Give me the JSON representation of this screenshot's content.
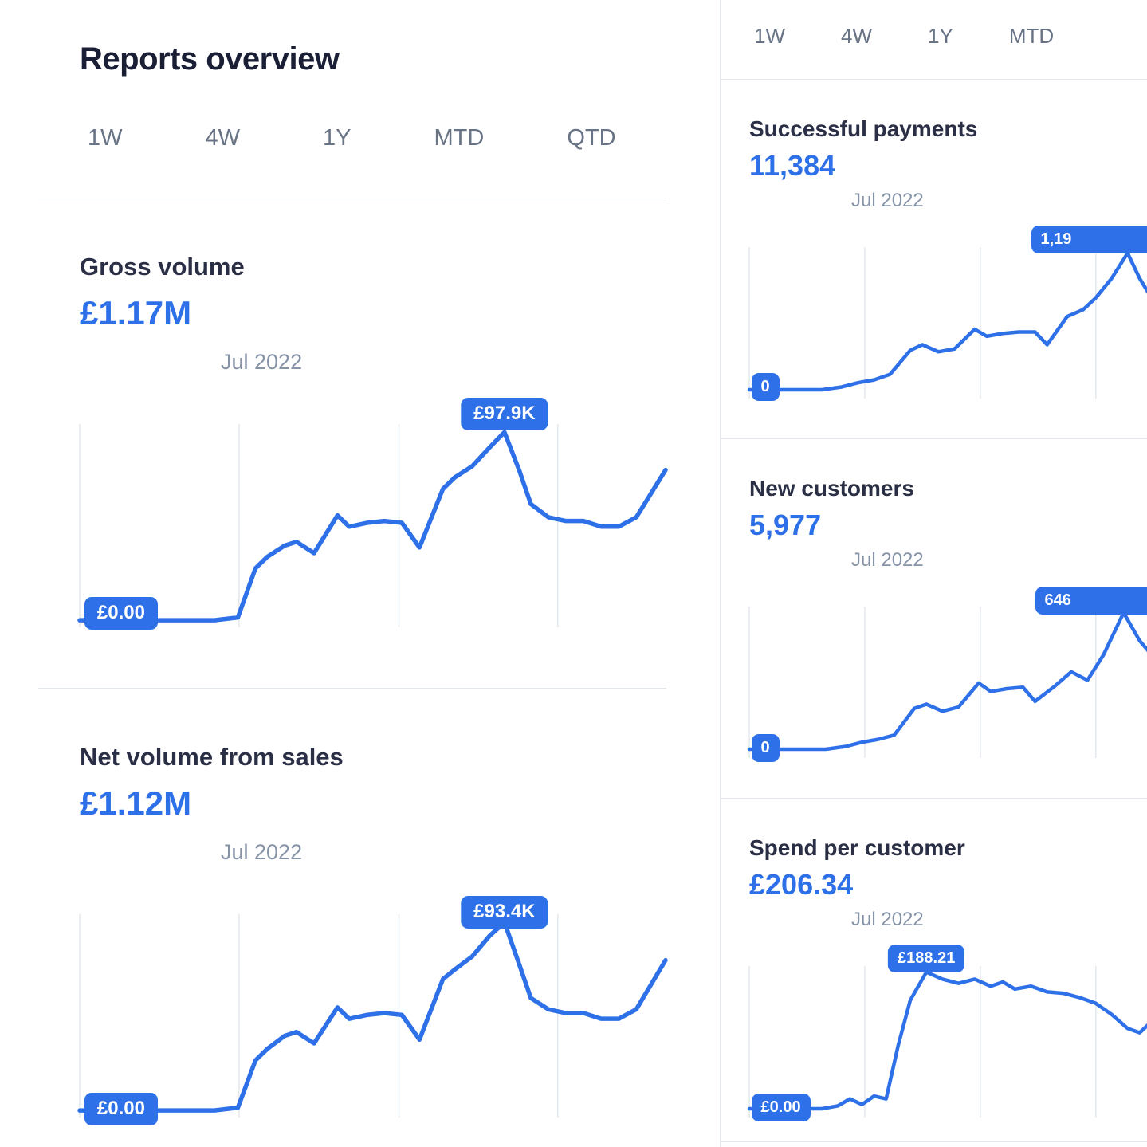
{
  "colors": {
    "accent": "#2e70e8",
    "grid": "#e3e8ee",
    "divider": "#e3e8ee",
    "title": "#1a1f36",
    "card_title": "#2a2f45",
    "muted": "#687385",
    "period": "#8693a7",
    "background": "#ffffff",
    "badge_text": "#ffffff"
  },
  "header": {
    "title": "Reports overview"
  },
  "left": {
    "tabs": [
      "1W",
      "4W",
      "1Y",
      "MTD",
      "QTD"
    ],
    "cards": [
      {
        "title": "Gross volume",
        "value": "£1.17M",
        "period": "Jul 2022"
      },
      {
        "title": "Net volume from sales",
        "value": "£1.12M",
        "period": "Jul 2022"
      }
    ]
  },
  "right": {
    "tabs": [
      "1W",
      "4W",
      "1Y",
      "MTD"
    ],
    "cards": [
      {
        "title": "Successful payments",
        "value": "11,384",
        "period": "Jul 2022"
      },
      {
        "title": "New customers",
        "value": "5,977",
        "period": "Jul 2022"
      },
      {
        "title": "Spend per customer",
        "value": "£206.34",
        "period": "Jul 2022"
      }
    ]
  },
  "chart_data": [
    {
      "type": "line",
      "name": "gross-volume",
      "title": "Gross volume",
      "total": "£1.17M",
      "period": "Jul 2022",
      "y_min_label": "£0.00",
      "y_peak_label": "£97.9K",
      "gridlines_x": [
        0,
        27.2,
        54.5,
        81.6
      ],
      "points": [
        [
          0,
          0.005
        ],
        [
          9,
          0.005
        ],
        [
          17,
          0.005
        ],
        [
          23,
          0.005
        ],
        [
          27,
          0.02
        ],
        [
          30,
          0.28
        ],
        [
          32,
          0.34
        ],
        [
          35,
          0.4
        ],
        [
          37,
          0.42
        ],
        [
          40,
          0.36
        ],
        [
          44,
          0.56
        ],
        [
          46,
          0.5
        ],
        [
          49,
          0.52
        ],
        [
          52,
          0.53
        ],
        [
          55,
          0.52
        ],
        [
          58,
          0.39
        ],
        [
          62,
          0.7
        ],
        [
          64,
          0.76
        ],
        [
          67,
          0.82
        ],
        [
          70,
          0.92
        ],
        [
          72.5,
          1.0
        ],
        [
          75,
          0.8
        ],
        [
          77,
          0.62
        ],
        [
          80,
          0.55
        ],
        [
          83,
          0.53
        ],
        [
          86,
          0.53
        ],
        [
          89,
          0.5
        ],
        [
          92,
          0.5
        ],
        [
          95,
          0.55
        ],
        [
          100,
          0.8
        ]
      ],
      "badges": [
        {
          "label": "£97.9K",
          "role": "peak-value",
          "x_pct": 72.5,
          "y_pct": -13,
          "anchor": "center"
        },
        {
          "label": "£0.00",
          "role": "min-value",
          "x_pct": 0.8,
          "y_pct": 85,
          "anchor": "left"
        }
      ]
    },
    {
      "type": "line",
      "name": "net-volume-from-sales",
      "title": "Net volume from sales",
      "total": "£1.12M",
      "period": "Jul 2022",
      "y_min_label": "£0.00",
      "y_peak_label": "£93.4K",
      "gridlines_x": [
        0,
        27.2,
        54.5,
        81.6
      ],
      "points": [
        [
          0,
          0.005
        ],
        [
          9,
          0.005
        ],
        [
          17,
          0.005
        ],
        [
          23,
          0.005
        ],
        [
          27,
          0.02
        ],
        [
          30,
          0.27
        ],
        [
          32,
          0.33
        ],
        [
          35,
          0.4
        ],
        [
          37,
          0.42
        ],
        [
          40,
          0.36
        ],
        [
          44,
          0.55
        ],
        [
          46,
          0.49
        ],
        [
          49,
          0.51
        ],
        [
          52,
          0.52
        ],
        [
          55,
          0.51
        ],
        [
          58,
          0.38
        ],
        [
          62,
          0.7
        ],
        [
          64,
          0.75
        ],
        [
          67,
          0.82
        ],
        [
          70,
          0.93
        ],
        [
          72.5,
          1.0
        ],
        [
          75,
          0.78
        ],
        [
          77,
          0.6
        ],
        [
          80,
          0.54
        ],
        [
          83,
          0.52
        ],
        [
          86,
          0.52
        ],
        [
          89,
          0.49
        ],
        [
          92,
          0.49
        ],
        [
          95,
          0.54
        ],
        [
          100,
          0.8
        ]
      ],
      "badges": [
        {
          "label": "£93.4K",
          "role": "peak-value",
          "x_pct": 72.5,
          "y_pct": -9,
          "anchor": "center"
        },
        {
          "label": "£0.00",
          "role": "min-value",
          "x_pct": 0.8,
          "y_pct": 88,
          "anchor": "left"
        }
      ]
    },
    {
      "type": "line",
      "name": "successful-payments",
      "title": "Successful payments",
      "total": "11,384",
      "period": "Jul 2022",
      "y_min_label": "0",
      "y_peak_label": "1,19",
      "gridlines_x": [
        0,
        28.7,
        57.4,
        86.1
      ],
      "points": [
        [
          0,
          0.03
        ],
        [
          7,
          0.03
        ],
        [
          13,
          0.03
        ],
        [
          18,
          0.03
        ],
        [
          23,
          0.05
        ],
        [
          27,
          0.08
        ],
        [
          31,
          0.1
        ],
        [
          35,
          0.14
        ],
        [
          40,
          0.31
        ],
        [
          43,
          0.35
        ],
        [
          47,
          0.3
        ],
        [
          51,
          0.32
        ],
        [
          56,
          0.46
        ],
        [
          59,
          0.41
        ],
        [
          63,
          0.43
        ],
        [
          67,
          0.44
        ],
        [
          71,
          0.44
        ],
        [
          74,
          0.35
        ],
        [
          79,
          0.55
        ],
        [
          83,
          0.6
        ],
        [
          86,
          0.68
        ],
        [
          90,
          0.82
        ],
        [
          94,
          1.0
        ],
        [
          97,
          0.82
        ],
        [
          100,
          0.68
        ]
      ],
      "badges": [
        {
          "label": "1,19",
          "role": "peak-value",
          "x_pct": 70,
          "y_pct": -14,
          "anchor": "right-clip"
        },
        {
          "label": "0",
          "role": "min-value",
          "x_pct": 0.5,
          "y_pct": 83,
          "anchor": "left"
        }
      ]
    },
    {
      "type": "line",
      "name": "new-customers",
      "title": "New customers",
      "total": "5,977",
      "period": "Jul 2022",
      "y_min_label": "0",
      "y_peak_label": "646",
      "gridlines_x": [
        0,
        28.7,
        57.4,
        86.1
      ],
      "points": [
        [
          0,
          0.03
        ],
        [
          7,
          0.03
        ],
        [
          13,
          0.03
        ],
        [
          19,
          0.03
        ],
        [
          24,
          0.05
        ],
        [
          28,
          0.08
        ],
        [
          32,
          0.1
        ],
        [
          36,
          0.13
        ],
        [
          41,
          0.32
        ],
        [
          44,
          0.35
        ],
        [
          48,
          0.3
        ],
        [
          52,
          0.33
        ],
        [
          57,
          0.5
        ],
        [
          60,
          0.44
        ],
        [
          64,
          0.46
        ],
        [
          68,
          0.47
        ],
        [
          71,
          0.37
        ],
        [
          76,
          0.48
        ],
        [
          80,
          0.58
        ],
        [
          84,
          0.52
        ],
        [
          88,
          0.7
        ],
        [
          93,
          1.0
        ],
        [
          97,
          0.8
        ],
        [
          100,
          0.7
        ]
      ],
      "badges": [
        {
          "label": "646",
          "role": "peak-value",
          "x_pct": 71,
          "y_pct": -13,
          "anchor": "right-clip"
        },
        {
          "label": "0",
          "role": "min-value",
          "x_pct": 0.5,
          "y_pct": 84,
          "anchor": "left"
        }
      ]
    },
    {
      "type": "line",
      "name": "spend-per-customer",
      "title": "Spend per customer",
      "total": "£206.34",
      "period": "Jul 2022",
      "y_min_label": "£0.00",
      "y_peak_label": "£188.21",
      "gridlines_x": [
        0,
        28.7,
        57.4,
        86.1
      ],
      "points": [
        [
          0,
          0.03
        ],
        [
          7,
          0.03
        ],
        [
          13,
          0.03
        ],
        [
          18,
          0.03
        ],
        [
          22,
          0.05
        ],
        [
          25,
          0.1
        ],
        [
          28,
          0.06
        ],
        [
          31,
          0.12
        ],
        [
          34,
          0.1
        ],
        [
          37,
          0.48
        ],
        [
          40,
          0.8
        ],
        [
          44,
          1.0
        ],
        [
          48,
          0.95
        ],
        [
          52,
          0.92
        ],
        [
          56,
          0.95
        ],
        [
          60,
          0.9
        ],
        [
          63,
          0.93
        ],
        [
          66,
          0.88
        ],
        [
          70,
          0.9
        ],
        [
          74,
          0.86
        ],
        [
          78,
          0.85
        ],
        [
          82,
          0.82
        ],
        [
          86,
          0.78
        ],
        [
          90,
          0.7
        ],
        [
          94,
          0.6
        ],
        [
          97,
          0.57
        ],
        [
          100,
          0.65
        ]
      ],
      "badges": [
        {
          "label": "£188.21",
          "role": "peak-value",
          "x_pct": 44,
          "y_pct": -14,
          "anchor": "center"
        },
        {
          "label": "£0.00",
          "role": "min-value",
          "x_pct": 0.5,
          "y_pct": 84,
          "anchor": "left"
        }
      ]
    }
  ]
}
